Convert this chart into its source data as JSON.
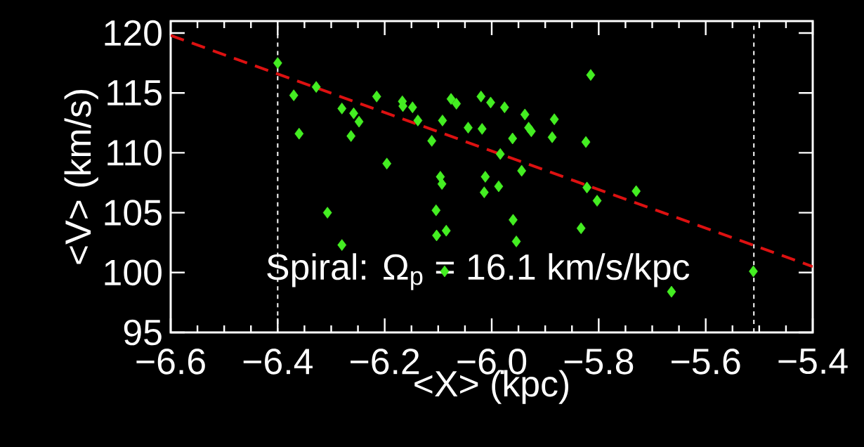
{
  "chart_data": {
    "type": "scatter",
    "xlabel": "<X> (kpc)",
    "ylabel": "<V> (km/s)",
    "annotations": [
      "Spiral:  Ω$_{p}$ = 16.1 km/s/kpc"
    ],
    "xlim": [
      -6.6,
      -5.4
    ],
    "ylim": [
      95,
      121
    ],
    "xticks": [
      {
        "value": -6.6,
        "label": "−6.6"
      },
      {
        "value": -6.4,
        "label": "−6.4"
      },
      {
        "value": -6.2,
        "label": "−6.2"
      },
      {
        "value": -6.0,
        "label": "−6.0"
      },
      {
        "value": -5.8,
        "label": "−5.8"
      },
      {
        "value": -5.6,
        "label": "−5.6"
      },
      {
        "value": -5.4,
        "label": "−5.4"
      }
    ],
    "yticks": [
      95,
      100,
      105,
      110,
      115,
      120
    ],
    "marker": "diamond",
    "ref_lines": [
      {
        "axis": "x",
        "value": -6.4,
        "color": "#ffffff",
        "line_style": "dotted"
      },
      {
        "axis": "x",
        "value": -5.51,
        "color": "#ffffff",
        "line_style": "dotted"
      }
    ],
    "series": [
      {
        "type": "scatter",
        "color": "#44ee22",
        "x": [
          -6.4,
          -6.328,
          -6.37,
          -6.36,
          -6.28,
          -6.258,
          -6.248,
          -6.263,
          -6.215,
          -6.167,
          -6.166,
          -6.148,
          -6.138,
          -6.112,
          -6.196,
          -6.092,
          -6.076,
          -6.066,
          -6.044,
          -6.018,
          -6.02,
          -6.002,
          -6.096,
          -6.093,
          -6.012,
          -6.014,
          -6.307,
          -6.28,
          -6.104,
          -6.103,
          -6.085,
          -6.088,
          -5.815,
          -5.976,
          -5.938,
          -5.883,
          -5.931,
          -5.926,
          -5.961,
          -5.887,
          -5.824,
          -5.984,
          -5.944,
          -5.987,
          -5.822,
          -5.73,
          -5.803,
          -5.96,
          -5.833,
          -5.954,
          -5.511,
          -5.664
        ],
        "values": [
          117.5,
          115.5,
          114.8,
          111.6,
          113.7,
          113.3,
          112.6,
          111.4,
          114.7,
          114.3,
          113.9,
          113.8,
          112.7,
          111.0,
          109.1,
          112.7,
          114.5,
          114.1,
          112.1,
          112.0,
          114.7,
          114.2,
          108.0,
          107.4,
          108.0,
          106.7,
          105.0,
          102.3,
          105.2,
          103.1,
          103.5,
          100.1,
          116.5,
          113.8,
          113.2,
          112.8,
          112.1,
          111.8,
          111.2,
          111.3,
          110.9,
          109.9,
          108.5,
          107.2,
          107.1,
          106.8,
          106.0,
          104.4,
          103.7,
          102.6,
          100.1,
          98.4
        ]
      },
      {
        "type": "line",
        "color": "#dd1111",
        "line_style": "dashed",
        "marker": "none",
        "x": [
          -6.6,
          -5.4
        ],
        "values": [
          119.8,
          100.5
        ]
      }
    ]
  }
}
